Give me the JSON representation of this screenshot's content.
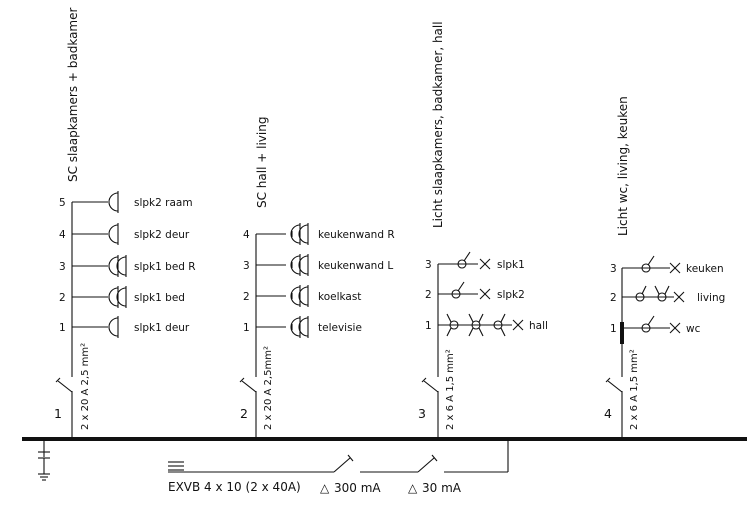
{
  "groups": [
    {
      "title": "SC slaapkamers + badkamer",
      "number": "1",
      "cable": "2 x 20 A  2,5 mm²",
      "circuits": [
        {
          "num": "5",
          "label": "slpk2 raam"
        },
        {
          "num": "4",
          "label": "slpk2 deur"
        },
        {
          "num": "3",
          "label": "slpk1 bed R"
        },
        {
          "num": "2",
          "label": "slpk1 bed"
        },
        {
          "num": "1",
          "label": "slpk1 deur"
        }
      ]
    },
    {
      "title": "SC hall + living",
      "number": "2",
      "cable": "2 x 20 A  2,5mm²",
      "circuits": [
        {
          "num": "4",
          "label": "keukenwand R"
        },
        {
          "num": "3",
          "label": "keukenwand L"
        },
        {
          "num": "2",
          "label": "koelkast"
        },
        {
          "num": "1",
          "label": "televisie"
        }
      ]
    },
    {
      "title": "Licht slaapkamers, badkamer, hall",
      "number": "3",
      "cable": "2 x 6 A  1,5 mm²",
      "circuits": [
        {
          "num": "3",
          "label": "slpk1"
        },
        {
          "num": "2",
          "label": "slpk2"
        },
        {
          "num": "1",
          "label": "hall"
        }
      ]
    },
    {
      "title": "Licht wc, living, keuken",
      "number": "4",
      "cable": "2 x 6 A  1,5 mm²",
      "circuits": [
        {
          "num": "3",
          "label": "keuken"
        },
        {
          "num": "2",
          "label": "living"
        },
        {
          "num": "1",
          "label": "wc"
        }
      ]
    }
  ],
  "supply": {
    "cable": "EXVB 4 x 10  (2 x 40A)",
    "rcd_main": "300 mA",
    "rcd_sub": "30 mA",
    "delta": "△"
  },
  "icons": [
    "socket-icon",
    "switch-icon",
    "lamp-icon",
    "earth-icon",
    "breaker-icon"
  ]
}
